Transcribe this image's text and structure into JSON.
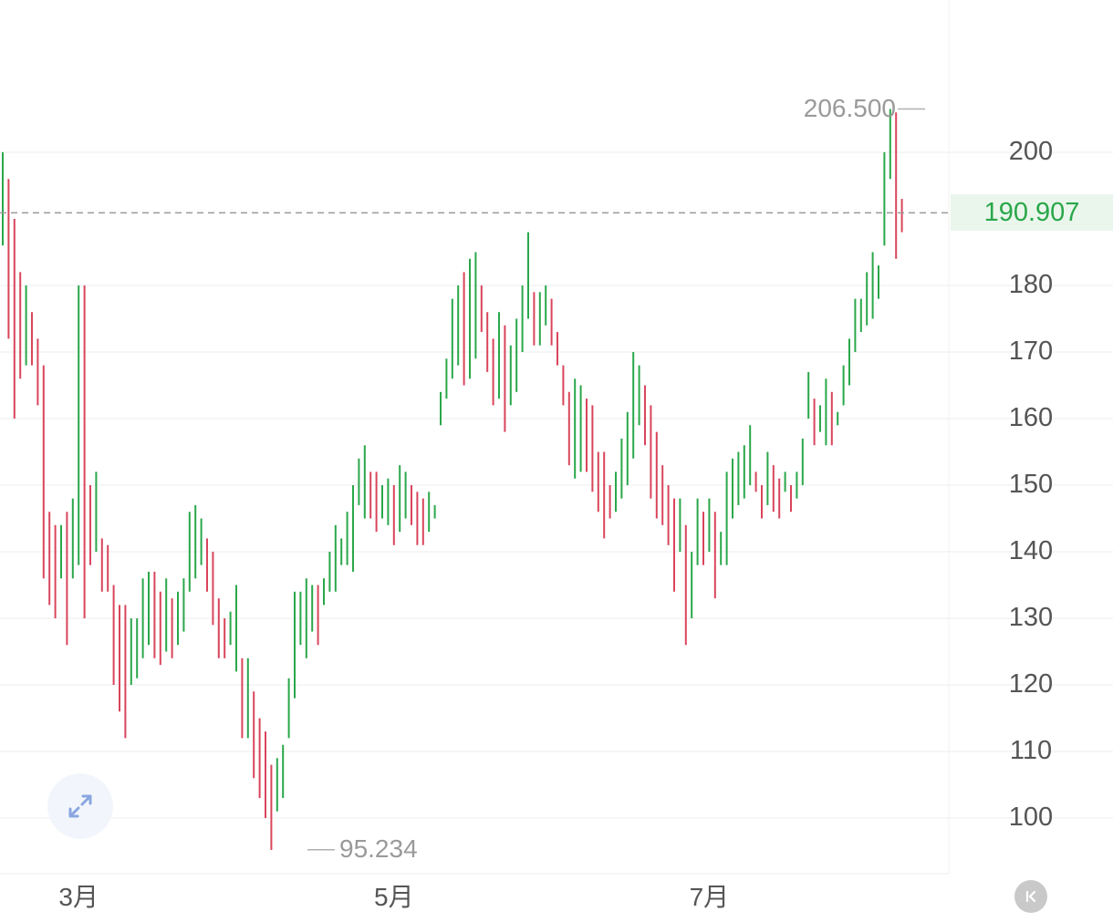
{
  "chart_data": {
    "type": "ohlc",
    "y_ticks": [
      100,
      110,
      120,
      130,
      140,
      150,
      160,
      170,
      180,
      200
    ],
    "x_ticks": [
      {
        "label": "3月",
        "index": 13
      },
      {
        "label": "5月",
        "index": 67
      },
      {
        "label": "7月",
        "index": 121
      }
    ],
    "ylim": [
      92,
      212
    ],
    "current_price": "190.907",
    "max_label": "206.500",
    "min_label": "95.234",
    "max_value": 206.5,
    "min_value": 95.234,
    "grid": true,
    "colors": {
      "up": "#2aa74a",
      "down": "#d9455b",
      "grid": "#ececec",
      "price_line": "#9a9a9a"
    },
    "candles": [
      [
        200,
        186
      ],
      [
        196,
        172
      ],
      [
        190,
        160
      ],
      [
        182,
        166
      ],
      [
        180,
        168
      ],
      [
        176,
        168
      ],
      [
        172,
        162
      ],
      [
        168,
        136
      ],
      [
        146,
        132
      ],
      [
        144,
        130
      ],
      [
        144,
        136
      ],
      [
        146,
        126
      ],
      [
        148,
        136
      ],
      [
        180,
        138
      ],
      [
        180,
        130
      ],
      [
        150,
        138
      ],
      [
        152,
        140
      ],
      [
        142,
        134
      ],
      [
        141,
        134
      ],
      [
        135,
        120
      ],
      [
        132,
        116
      ],
      [
        132,
        112
      ],
      [
        130,
        120
      ],
      [
        130,
        121
      ],
      [
        136,
        124
      ],
      [
        137,
        126
      ],
      [
        137,
        124
      ],
      [
        134,
        123
      ],
      [
        136,
        125
      ],
      [
        133,
        124
      ],
      [
        134,
        126
      ],
      [
        136,
        128
      ],
      [
        146,
        134
      ],
      [
        147,
        136
      ],
      [
        145,
        138
      ],
      [
        142,
        134
      ],
      [
        140,
        129
      ],
      [
        133,
        124
      ],
      [
        130,
        124
      ],
      [
        131,
        126
      ],
      [
        135,
        122
      ],
      [
        124,
        112
      ],
      [
        124,
        112
      ],
      [
        119,
        106
      ],
      [
        115,
        103
      ],
      [
        113,
        100
      ],
      [
        108,
        95.2
      ],
      [
        109,
        101
      ],
      [
        111,
        103
      ],
      [
        121,
        112
      ],
      [
        134,
        118
      ],
      [
        134,
        126
      ],
      [
        136,
        124
      ],
      [
        135,
        128
      ],
      [
        135,
        126
      ],
      [
        136,
        132
      ],
      [
        140,
        134
      ],
      [
        144,
        134
      ],
      [
        142,
        138
      ],
      [
        146,
        138
      ],
      [
        150,
        137
      ],
      [
        154,
        147
      ],
      [
        156,
        145
      ],
      [
        152,
        145
      ],
      [
        152,
        143
      ],
      [
        150,
        145
      ],
      [
        151,
        144
      ],
      [
        150,
        141
      ],
      [
        153,
        143
      ],
      [
        152,
        145
      ],
      [
        150,
        144
      ],
      [
        149,
        141
      ],
      [
        148,
        141
      ],
      [
        149,
        143
      ],
      [
        147,
        145
      ],
      [
        164,
        159
      ],
      [
        169,
        163
      ],
      [
        178,
        166
      ],
      [
        180,
        168
      ],
      [
        182,
        165
      ],
      [
        184,
        166
      ],
      [
        185,
        169
      ],
      [
        180,
        173
      ],
      [
        176,
        167
      ],
      [
        172,
        162
      ],
      [
        176,
        163
      ],
      [
        174,
        158
      ],
      [
        171,
        162
      ],
      [
        175,
        164
      ],
      [
        180,
        170
      ],
      [
        188,
        175
      ],
      [
        179,
        171
      ],
      [
        179,
        171
      ],
      [
        180,
        174
      ],
      [
        178,
        171
      ],
      [
        173,
        168
      ],
      [
        168,
        162
      ],
      [
        164,
        153
      ],
      [
        166,
        151
      ],
      [
        165,
        152
      ],
      [
        163,
        152
      ],
      [
        162,
        149
      ],
      [
        155,
        146
      ],
      [
        155,
        142
      ],
      [
        150,
        145
      ],
      [
        152,
        146
      ],
      [
        157,
        148
      ],
      [
        161,
        150
      ],
      [
        170,
        154
      ],
      [
        168,
        159
      ],
      [
        165,
        156
      ],
      [
        162,
        148
      ],
      [
        158,
        145
      ],
      [
        153,
        144
      ],
      [
        150,
        141
      ],
      [
        148,
        134
      ],
      [
        148,
        140
      ],
      [
        144,
        126
      ],
      [
        140,
        130
      ],
      [
        148,
        138
      ],
      [
        146,
        138
      ],
      [
        148,
        140
      ],
      [
        146,
        133
      ],
      [
        143,
        138
      ],
      [
        152,
        138
      ],
      [
        154,
        145
      ],
      [
        155,
        147
      ],
      [
        156,
        148
      ],
      [
        159,
        150
      ],
      [
        152,
        149
      ],
      [
        150,
        145
      ],
      [
        155,
        147
      ],
      [
        153,
        146
      ],
      [
        151,
        145
      ],
      [
        152,
        149
      ],
      [
        150,
        146
      ],
      [
        152,
        148
      ],
      [
        157,
        150
      ],
      [
        167,
        160
      ],
      [
        163,
        156
      ],
      [
        162,
        158
      ],
      [
        166,
        156
      ],
      [
        164,
        156
      ],
      [
        161,
        159
      ],
      [
        168,
        162
      ],
      [
        172,
        165
      ],
      [
        178,
        170
      ],
      [
        178,
        173
      ],
      [
        182,
        174
      ],
      [
        185,
        175
      ],
      [
        183,
        178
      ],
      [
        200,
        186
      ],
      [
        206.5,
        196
      ],
      [
        206,
        184
      ],
      [
        193,
        188
      ]
    ]
  },
  "ui": {
    "expand_icon": "expand-arrows-icon",
    "collapse_icon": "collapse-left-icon"
  }
}
